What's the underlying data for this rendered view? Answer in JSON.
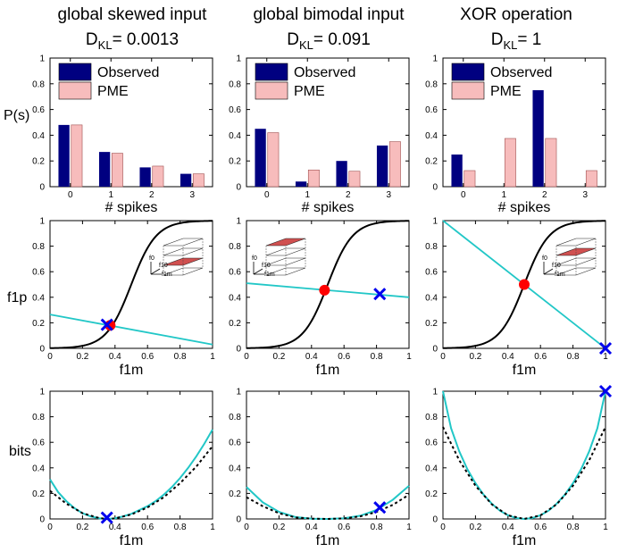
{
  "figure": {
    "row_labels": [
      "P(s)",
      "f1p",
      "bits"
    ],
    "columns": [
      {
        "title": "global skewed input",
        "dkl_text": "D",
        "dkl_sub": "KL",
        "dkl_value": "= 0.0013"
      },
      {
        "title": "global bimodal input",
        "dkl_text": "D",
        "dkl_sub": "KL",
        "dkl_value": "= 0.091"
      },
      {
        "title": "XOR operation",
        "dkl_text": "D",
        "dkl_sub": "KL",
        "dkl_value": "= 1"
      }
    ]
  },
  "chart_data": [
    {
      "type": "bar",
      "panel": "skewed-spikes",
      "categories": [
        "0",
        "1",
        "2",
        "3"
      ],
      "series": [
        {
          "name": "Observed",
          "values": [
            0.48,
            0.27,
            0.15,
            0.1
          ]
        },
        {
          "name": "PME",
          "values": [
            0.48,
            0.26,
            0.16,
            0.1
          ]
        }
      ],
      "xlabel": "# spikes",
      "ylabel": "P(s)",
      "ylim": [
        0,
        1
      ],
      "yticks": [
        "0",
        "0.2",
        "0.4",
        "0.6",
        "0.8",
        "1"
      ],
      "legend": {
        "position": "top-left",
        "entries": [
          "Observed",
          "PME"
        ]
      },
      "colors": {
        "Observed": "#000080",
        "PME": "#f7bcbc"
      }
    },
    {
      "type": "bar",
      "panel": "bimodal-spikes",
      "categories": [
        "0",
        "1",
        "2",
        "3"
      ],
      "series": [
        {
          "name": "Observed",
          "values": [
            0.45,
            0.04,
            0.2,
            0.32
          ]
        },
        {
          "name": "PME",
          "values": [
            0.42,
            0.13,
            0.12,
            0.35
          ]
        }
      ],
      "xlabel": "# spikes",
      "ylabel": "",
      "ylim": [
        0,
        1
      ],
      "yticks": [
        "0",
        "0.2",
        "0.4",
        "0.6",
        "0.8",
        "1"
      ],
      "legend": {
        "position": "top-left",
        "entries": [
          "Observed",
          "PME"
        ]
      },
      "colors": {
        "Observed": "#000080",
        "PME": "#f7bcbc"
      }
    },
    {
      "type": "bar",
      "panel": "xor-spikes",
      "categories": [
        "0",
        "1",
        "2",
        "3"
      ],
      "series": [
        {
          "name": "Observed",
          "values": [
            0.25,
            0.0,
            0.75,
            0.0
          ]
        },
        {
          "name": "PME",
          "values": [
            0.125,
            0.375,
            0.375,
            0.125
          ]
        }
      ],
      "xlabel": "# spikes",
      "ylabel": "",
      "ylim": [
        0,
        1
      ],
      "yticks": [
        "0",
        "0.2",
        "0.4",
        "0.6",
        "0.8",
        "1"
      ],
      "legend": {
        "position": "top-left",
        "entries": [
          "Observed",
          "PME"
        ]
      },
      "colors": {
        "Observed": "#000080",
        "PME": "#f7bcbc"
      }
    },
    {
      "type": "line",
      "panel": "skewed-f1p",
      "xlabel": "f1m",
      "ylabel": "f1p",
      "xlim": [
        0,
        1
      ],
      "ylim": [
        0,
        1
      ],
      "xticks": [
        "0",
        "0.2",
        "0.4",
        "0.6",
        "0.8",
        "1"
      ],
      "yticks": [
        "0",
        "0.2",
        "0.4",
        "0.6",
        "0.8",
        "1"
      ],
      "sigmoid": {
        "name": "sigmoid",
        "color": "#000000",
        "center": 0.5,
        "steepness": 13
      },
      "constraint_line": {
        "name": "constraint",
        "color": "#22c7c7",
        "x": [
          0,
          1
        ],
        "y": [
          0.265,
          0.03
        ]
      },
      "pme_point": {
        "name": "PME",
        "color": "#ff0000",
        "x": 0.37,
        "y": 0.18
      },
      "observed_point": {
        "name": "Observed",
        "color": "#0000ee",
        "x": 0.35,
        "y": 0.185
      },
      "inset": {
        "position": "upper-right",
        "labels": [
          "f0",
          "f10",
          "f1m"
        ],
        "highlight_plane": "lower"
      }
    },
    {
      "type": "line",
      "panel": "bimodal-f1p",
      "xlabel": "f1m",
      "ylabel": "",
      "xlim": [
        0,
        1
      ],
      "ylim": [
        0,
        1
      ],
      "xticks": [
        "0",
        "0.2",
        "0.4",
        "0.6",
        "0.8",
        "1"
      ],
      "yticks": [
        "0",
        "0.2",
        "0.4",
        "0.6",
        "0.8",
        "1"
      ],
      "sigmoid": {
        "name": "sigmoid",
        "color": "#000000",
        "center": 0.5,
        "steepness": 13
      },
      "constraint_line": {
        "name": "constraint",
        "color": "#22c7c7",
        "x": [
          0,
          1
        ],
        "y": [
          0.51,
          0.4
        ]
      },
      "pme_point": {
        "name": "PME",
        "color": "#ff0000",
        "x": 0.48,
        "y": 0.455
      },
      "observed_point": {
        "name": "Observed",
        "color": "#0000ee",
        "x": 0.82,
        "y": 0.425
      },
      "inset": {
        "position": "upper-left",
        "labels": [
          "f0",
          "f10",
          "f1m"
        ],
        "highlight_plane": "upper"
      }
    },
    {
      "type": "line",
      "panel": "xor-f1p",
      "xlabel": "f1m",
      "ylabel": "",
      "xlim": [
        0,
        1
      ],
      "ylim": [
        0,
        1
      ],
      "xticks": [
        "0",
        "0.2",
        "0.4",
        "0.6",
        "0.8",
        "1"
      ],
      "yticks": [
        "0",
        "0.2",
        "0.4",
        "0.6",
        "0.8",
        "1"
      ],
      "sigmoid": {
        "name": "sigmoid",
        "color": "#000000",
        "center": 0.5,
        "steepness": 13
      },
      "constraint_line": {
        "name": "constraint",
        "color": "#22c7c7",
        "x": [
          0,
          1
        ],
        "y": [
          1.0,
          0.0
        ]
      },
      "pme_point": {
        "name": "PME",
        "color": "#ff0000",
        "x": 0.5,
        "y": 0.5
      },
      "observed_point": {
        "name": "Observed",
        "color": "#0000ee",
        "x": 1.0,
        "y": 0.0
      },
      "inset": {
        "position": "upper-right",
        "labels": [
          "f0",
          "f10",
          "f1m"
        ],
        "highlight_plane": "middle"
      }
    },
    {
      "type": "line",
      "panel": "skewed-bits",
      "xlabel": "f1m",
      "ylabel": "bits",
      "xlim": [
        0,
        1
      ],
      "ylim": [
        0,
        1
      ],
      "xticks": [
        "0",
        "0.2",
        "0.4",
        "0.6",
        "0.8",
        "1"
      ],
      "yticks": [
        "0",
        "0.2",
        "0.4",
        "0.6",
        "0.8",
        "1"
      ],
      "curve": {
        "name": "bits",
        "color": "#22c7c7",
        "x": [
          0,
          0.05,
          0.1,
          0.15,
          0.2,
          0.25,
          0.3,
          0.35,
          0.4,
          0.45,
          0.5,
          0.55,
          0.6,
          0.65,
          0.7,
          0.75,
          0.8,
          0.85,
          0.9,
          0.95,
          1.0
        ],
        "y": [
          0.31,
          0.21,
          0.14,
          0.085,
          0.045,
          0.02,
          0.005,
          0.0,
          0.005,
          0.02,
          0.04,
          0.07,
          0.1,
          0.14,
          0.19,
          0.25,
          0.32,
          0.4,
          0.49,
          0.59,
          0.7
        ]
      },
      "dashed_curve": {
        "name": "approximation",
        "color": "#000000",
        "x": [
          0,
          0.1,
          0.2,
          0.3,
          0.35,
          0.4,
          0.5,
          0.6,
          0.7,
          0.8,
          0.9,
          1.0
        ],
        "y": [
          0.22,
          0.12,
          0.045,
          0.008,
          0.0,
          0.004,
          0.035,
          0.09,
          0.17,
          0.28,
          0.41,
          0.57
        ]
      },
      "observed_point": {
        "name": "Observed",
        "color": "#0000ee",
        "x": 0.35,
        "y": 0.01
      }
    },
    {
      "type": "line",
      "panel": "bimodal-bits",
      "xlabel": "f1m",
      "ylabel": "",
      "xlim": [
        0,
        1
      ],
      "ylim": [
        0,
        1
      ],
      "xticks": [
        "0",
        "0.2",
        "0.4",
        "0.6",
        "0.8",
        "1"
      ],
      "yticks": [
        "0",
        "0.2",
        "0.4",
        "0.6",
        "0.8",
        "1"
      ],
      "curve": {
        "name": "bits",
        "color": "#22c7c7",
        "x": [
          0,
          0.1,
          0.2,
          0.3,
          0.4,
          0.5,
          0.6,
          0.7,
          0.8,
          0.9,
          1.0
        ],
        "y": [
          0.25,
          0.13,
          0.055,
          0.015,
          0.002,
          0.0,
          0.005,
          0.025,
          0.07,
          0.15,
          0.26
        ]
      },
      "dashed_curve": {
        "name": "approximation",
        "color": "#000000",
        "x": [
          0,
          0.1,
          0.2,
          0.3,
          0.4,
          0.5,
          0.6,
          0.7,
          0.8,
          0.9,
          1.0
        ],
        "y": [
          0.17,
          0.1,
          0.045,
          0.012,
          0.002,
          0.0,
          0.004,
          0.02,
          0.055,
          0.11,
          0.19
        ]
      },
      "observed_point": {
        "name": "Observed",
        "color": "#0000ee",
        "x": 0.82,
        "y": 0.09
      }
    },
    {
      "type": "line",
      "panel": "xor-bits",
      "xlabel": "f1m",
      "ylabel": "",
      "xlim": [
        0,
        1
      ],
      "ylim": [
        0,
        1
      ],
      "xticks": [
        "0",
        "0.2",
        "0.4",
        "0.6",
        "0.8",
        "1"
      ],
      "yticks": [
        "0",
        "0.2",
        "0.4",
        "0.6",
        "0.8",
        "1"
      ],
      "curve": {
        "name": "bits",
        "color": "#22c7c7",
        "x": [
          0,
          0.05,
          0.1,
          0.15,
          0.2,
          0.25,
          0.3,
          0.35,
          0.4,
          0.45,
          0.5,
          0.55,
          0.6,
          0.65,
          0.7,
          0.75,
          0.8,
          0.85,
          0.9,
          0.95,
          1.0
        ],
        "y": [
          1.0,
          0.71,
          0.53,
          0.39,
          0.28,
          0.19,
          0.12,
          0.065,
          0.029,
          0.007,
          0.0,
          0.007,
          0.029,
          0.065,
          0.12,
          0.19,
          0.28,
          0.39,
          0.53,
          0.71,
          1.0
        ]
      },
      "dashed_curve": {
        "name": "approximation",
        "color": "#000000",
        "x": [
          0,
          0.1,
          0.2,
          0.3,
          0.4,
          0.5,
          0.6,
          0.7,
          0.8,
          0.9,
          1.0
        ],
        "y": [
          0.72,
          0.46,
          0.26,
          0.115,
          0.028,
          0.0,
          0.028,
          0.115,
          0.26,
          0.46,
          0.72
        ]
      },
      "observed_point": {
        "name": "Observed",
        "color": "#0000ee",
        "x": 1.0,
        "y": 1.0
      }
    }
  ]
}
